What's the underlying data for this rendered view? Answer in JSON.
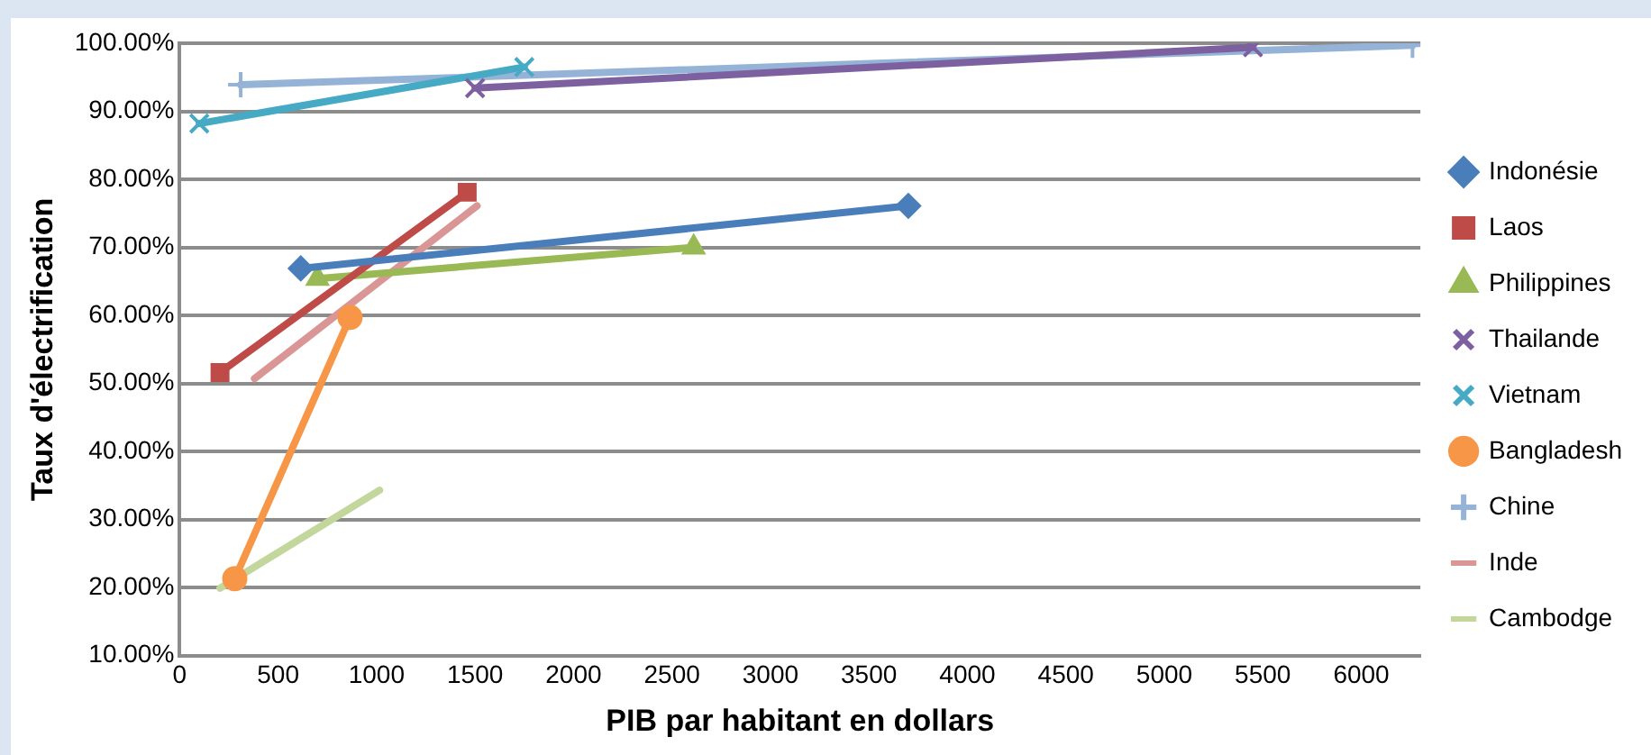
{
  "chart_data": {
    "type": "line",
    "xlabel": "PIB par habitant en dollars",
    "ylabel": "Taux d'électrification",
    "xlim": [
      0,
      6300
    ],
    "xticks": [
      0,
      500,
      1000,
      1500,
      2000,
      2500,
      3000,
      3500,
      4000,
      4500,
      5000,
      5500,
      6000
    ],
    "ylim": [
      10,
      100
    ],
    "yticks": [
      {
        "value": 10,
        "label": "10.00%"
      },
      {
        "value": 20,
        "label": "20.00%"
      },
      {
        "value": 30,
        "label": "30.00%"
      },
      {
        "value": 40,
        "label": "40.00%"
      },
      {
        "value": 50,
        "label": "50.00%"
      },
      {
        "value": 60,
        "label": "60.00%"
      },
      {
        "value": 70,
        "label": "70.00%"
      },
      {
        "value": 80,
        "label": "80.00%"
      },
      {
        "value": 90,
        "label": "90.00%"
      },
      {
        "value": 100,
        "label": "100.00%"
      }
    ],
    "grid": "y",
    "legend": "right",
    "line_style": "solid",
    "series": [
      {
        "name": "Indonésie",
        "color": "#4a7ebb",
        "marker": "diamond",
        "x": [
          615,
          3700
        ],
        "values": [
          66.9,
          76.1
        ]
      },
      {
        "name": "Laos",
        "color": "#be4b48",
        "marker": "square",
        "x": [
          205,
          1460
        ],
        "values": [
          51.6,
          78.1
        ]
      },
      {
        "name": "Philippines",
        "color": "#98b954",
        "marker": "triangle",
        "x": [
          700,
          2610
        ],
        "values": [
          65.4,
          70.0
        ]
      },
      {
        "name": "Thailande",
        "color": "#7d60a0",
        "marker": "cross",
        "x": [
          1500,
          5450
        ],
        "values": [
          93.4,
          99.4
        ]
      },
      {
        "name": "Vietnam",
        "color": "#46aac5",
        "marker": "cross",
        "x": [
          100,
          1750
        ],
        "values": [
          88.2,
          96.5
        ]
      },
      {
        "name": "Bangladesh",
        "color": "#f79646",
        "marker": "circle",
        "x": [
          280,
          865
        ],
        "values": [
          21.3,
          59.7
        ]
      },
      {
        "name": "Chine",
        "color": "#95b3d7",
        "marker": "plus",
        "x": [
          310,
          6260
        ],
        "values": [
          93.9,
          99.7
        ]
      },
      {
        "name": "Inde",
        "color": "#d99694",
        "marker": "none",
        "x": [
          380,
          1510
        ],
        "values": [
          50.7,
          76.1
        ]
      },
      {
        "name": "Cambodge",
        "color": "#c3d69b",
        "marker": "none",
        "x": [
          205,
          1015
        ],
        "values": [
          19.9,
          34.3
        ]
      }
    ]
  }
}
